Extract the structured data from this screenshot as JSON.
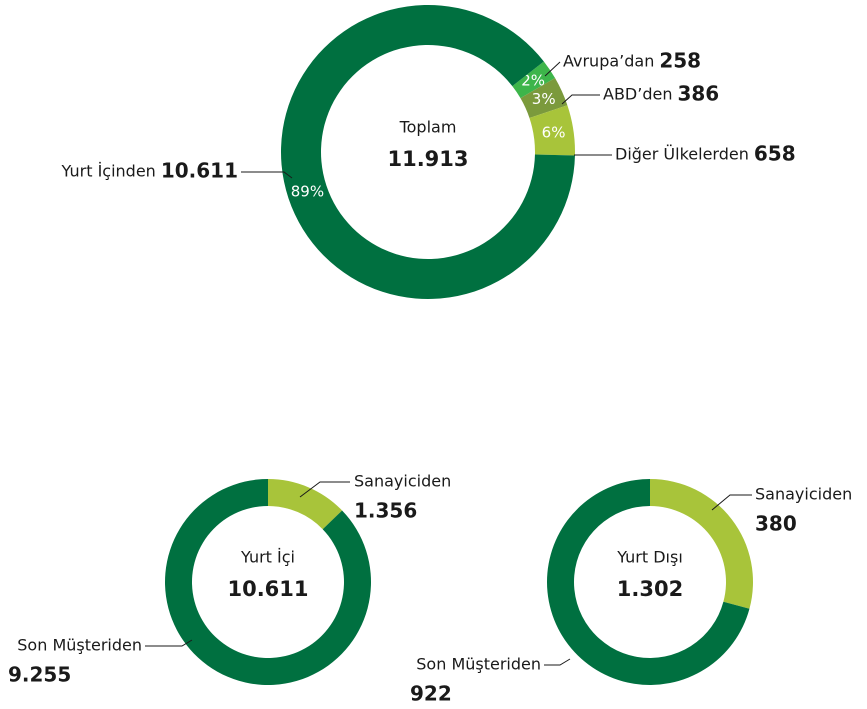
{
  "chart_data": [
    {
      "type": "donut",
      "center_title": "Toplam",
      "total": 11913,
      "total_label": "11.913",
      "categories": [
        "Avrupa’dan",
        "ABD’den",
        "Diğer Ülkelerden",
        "Yurt İçinden"
      ],
      "values": [
        258,
        386,
        658,
        10611
      ],
      "value_labels": [
        "258",
        "386",
        "658",
        "10.611"
      ],
      "percent_labels": [
        "2%",
        "3%",
        "6%",
        "89%"
      ],
      "colors": [
        "#3db54a",
        "#7b9a3c",
        "#a8c43a",
        "#007040"
      ]
    },
    {
      "type": "donut",
      "center_title": "Yurt İçi",
      "total": 10611,
      "total_label": "10.611",
      "categories": [
        "Sanayiciden",
        "Son Müşteriden"
      ],
      "values": [
        1356,
        9255
      ],
      "value_labels": [
        "1.356",
        "9.255"
      ],
      "colors": [
        "#a8c43a",
        "#007040"
      ]
    },
    {
      "type": "donut",
      "center_title": "Yurt Dışı",
      "total": 1302,
      "total_label": "1.302",
      "categories": [
        "Sanayiciden",
        "Son Müşteriden"
      ],
      "values": [
        380,
        922
      ],
      "value_labels": [
        "380",
        "922"
      ],
      "colors": [
        "#a8c43a",
        "#007040"
      ]
    }
  ]
}
